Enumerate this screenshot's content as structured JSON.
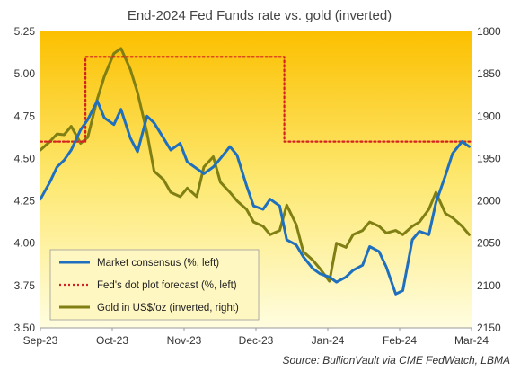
{
  "chart_data": {
    "type": "line",
    "title": "End-2024 Fed Funds rate vs. gold (inverted)",
    "source": "Source:  BullionVault via  CME FedWatch, LBMA",
    "x_ticks": [
      "Sep-23",
      "Oct-23",
      "Nov-23",
      "Dec-23",
      "Jan-24",
      "Feb-24",
      "Mar-24"
    ],
    "y_left": {
      "ticks": [
        "3.50",
        "3.75",
        "4.00",
        "4.25",
        "4.50",
        "4.75",
        "5.00",
        "5.25"
      ],
      "range": [
        3.5,
        5.25
      ]
    },
    "y_right": {
      "ticks": [
        "2150",
        "2100",
        "2050",
        "2000",
        "1950",
        "1900",
        "1850",
        "1800"
      ],
      "range": [
        2150,
        1800
      ],
      "inverted": true
    },
    "x_range": [
      "2023-09-01",
      "2024-03-01"
    ],
    "legend_position": "bottom-left",
    "colors": {
      "market": "#1f6fbf",
      "dotplot": "#d42222",
      "gold": "#7f7f14"
    },
    "series": [
      {
        "name": "Market consensus (%, left)",
        "axis": "left",
        "x": [
          "2023-09-01",
          "2023-09-05",
          "2023-09-08",
          "2023-09-11",
          "2023-09-14",
          "2023-09-18",
          "2023-09-21",
          "2023-09-25",
          "2023-09-28",
          "2023-10-02",
          "2023-10-05",
          "2023-10-09",
          "2023-10-12",
          "2023-10-16",
          "2023-10-19",
          "2023-10-23",
          "2023-10-26",
          "2023-10-30",
          "2023-11-02",
          "2023-11-06",
          "2023-11-09",
          "2023-11-13",
          "2023-11-16",
          "2023-11-20",
          "2023-11-23",
          "2023-11-27",
          "2023-11-30",
          "2023-12-04",
          "2023-12-07",
          "2023-12-11",
          "2023-12-14",
          "2023-12-18",
          "2023-12-21",
          "2023-12-25",
          "2023-12-28",
          "2024-01-01",
          "2024-01-04",
          "2024-01-08",
          "2024-01-11",
          "2024-01-15",
          "2024-01-18",
          "2024-01-22",
          "2024-01-25",
          "2024-01-29",
          "2024-02-01",
          "2024-02-05",
          "2024-02-08",
          "2024-02-12",
          "2024-02-15",
          "2024-02-19",
          "2024-02-22",
          "2024-02-26",
          "2024-02-29"
        ],
        "values": [
          4.26,
          4.36,
          4.45,
          4.49,
          4.55,
          4.67,
          4.73,
          4.84,
          4.74,
          4.7,
          4.79,
          4.62,
          4.54,
          4.75,
          4.71,
          4.62,
          4.55,
          4.59,
          4.48,
          4.44,
          4.41,
          4.45,
          4.5,
          4.57,
          4.52,
          4.34,
          4.22,
          4.2,
          4.26,
          4.22,
          4.02,
          3.99,
          3.92,
          3.85,
          3.82,
          3.8,
          3.77,
          3.8,
          3.84,
          3.87,
          3.98,
          3.95,
          3.86,
          3.7,
          3.72,
          4.02,
          4.07,
          4.05,
          4.24,
          4.4,
          4.53,
          4.6,
          4.57
        ]
      },
      {
        "name": "Fed's dot plot forecast (%, left)",
        "axis": "left",
        "x": [
          "2023-09-01",
          "2023-09-20",
          "2023-09-20",
          "2023-12-13",
          "2023-12-13",
          "2024-03-01"
        ],
        "values": [
          4.6,
          4.6,
          5.1,
          5.1,
          4.6,
          4.6
        ]
      },
      {
        "name": "Gold in US$/oz (inverted, right)",
        "axis": "right",
        "x": [
          "2023-09-01",
          "2023-09-05",
          "2023-09-08",
          "2023-09-11",
          "2023-09-14",
          "2023-09-18",
          "2023-09-21",
          "2023-09-25",
          "2023-09-28",
          "2023-10-02",
          "2023-10-05",
          "2023-10-09",
          "2023-10-12",
          "2023-10-16",
          "2023-10-19",
          "2023-10-23",
          "2023-10-26",
          "2023-10-30",
          "2023-11-02",
          "2023-11-06",
          "2023-11-09",
          "2023-11-13",
          "2023-11-16",
          "2023-11-20",
          "2023-11-23",
          "2023-11-27",
          "2023-11-30",
          "2023-12-04",
          "2023-12-07",
          "2023-12-11",
          "2023-12-14",
          "2023-12-18",
          "2023-12-21",
          "2023-12-25",
          "2023-12-28",
          "2024-01-01",
          "2024-01-04",
          "2024-01-08",
          "2024-01-11",
          "2024-01-15",
          "2024-01-18",
          "2024-01-22",
          "2024-01-25",
          "2024-01-29",
          "2024-02-01",
          "2024-02-05",
          "2024-02-08",
          "2024-02-12",
          "2024-02-15",
          "2024-02-19",
          "2024-02-22",
          "2024-02-26",
          "2024-02-29"
        ],
        "values": [
          1940,
          1930,
          1921,
          1922,
          1912,
          1932,
          1925,
          1880,
          1853,
          1826,
          1820,
          1845,
          1872,
          1920,
          1965,
          1975,
          1990,
          1995,
          1985,
          1995,
          1960,
          1948,
          1978,
          1990,
          2000,
          2010,
          2025,
          2030,
          2040,
          2035,
          2005,
          2028,
          2060,
          2070,
          2080,
          2095,
          2050,
          2055,
          2040,
          2035,
          2025,
          2030,
          2038,
          2035,
          2040,
          2030,
          2025,
          2010,
          1990,
          2015,
          2020,
          2030,
          2040
        ]
      }
    ]
  }
}
